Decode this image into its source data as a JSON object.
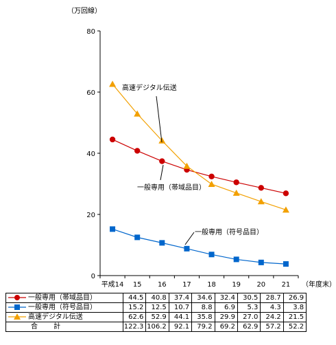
{
  "chart_data": {
    "type": "line",
    "unit_label": "（万回線）",
    "x_unit_label": "（年度末）",
    "categories": [
      "平成14",
      "15",
      "16",
      "17",
      "18",
      "19",
      "20",
      "21"
    ],
    "yticks": [
      "0",
      "20",
      "40",
      "60",
      "80"
    ],
    "ylim": [
      0,
      80
    ],
    "series": [
      {
        "name": "一般専用（帯域品目）",
        "color": "#cc0000",
        "marker": "circle",
        "values": [
          44.5,
          40.8,
          37.4,
          34.6,
          32.4,
          30.5,
          28.7,
          26.9
        ]
      },
      {
        "name": "一般専用（符号品目）",
        "color": "#0066cc",
        "marker": "square",
        "values": [
          15.2,
          12.5,
          10.7,
          8.8,
          6.9,
          5.3,
          4.3,
          3.8
        ]
      },
      {
        "name": "高速デジタル伝送",
        "color": "#f2a000",
        "marker": "triangle",
        "values": [
          62.6,
          52.9,
          44.1,
          35.8,
          29.9,
          27.0,
          24.2,
          21.5
        ]
      }
    ],
    "annotations": [
      "高速デジタル伝送",
      "一般専用（帯域品目）",
      "一般専用（符号品目）"
    ],
    "table": {
      "rows": [
        {
          "label": "一般専用（帯域品目）",
          "values": [
            "44.5",
            "40.8",
            "37.4",
            "34.6",
            "32.4",
            "30.5",
            "28.7",
            "26.9"
          ]
        },
        {
          "label": "一般専用（符号品目）",
          "values": [
            "15.2",
            "12.5",
            "10.7",
            "8.8",
            "6.9",
            "5.3",
            "4.3",
            "3.8"
          ]
        },
        {
          "label": "高速デジタル伝送",
          "values": [
            "62.6",
            "52.9",
            "44.1",
            "35.8",
            "29.9",
            "27.0",
            "24.2",
            "21.5"
          ]
        }
      ],
      "total_label": "合 計",
      "total_values": [
        "122.3",
        "106.2",
        "92.1",
        "79.2",
        "69.2",
        "62.9",
        "57.2",
        "52.2"
      ]
    }
  }
}
